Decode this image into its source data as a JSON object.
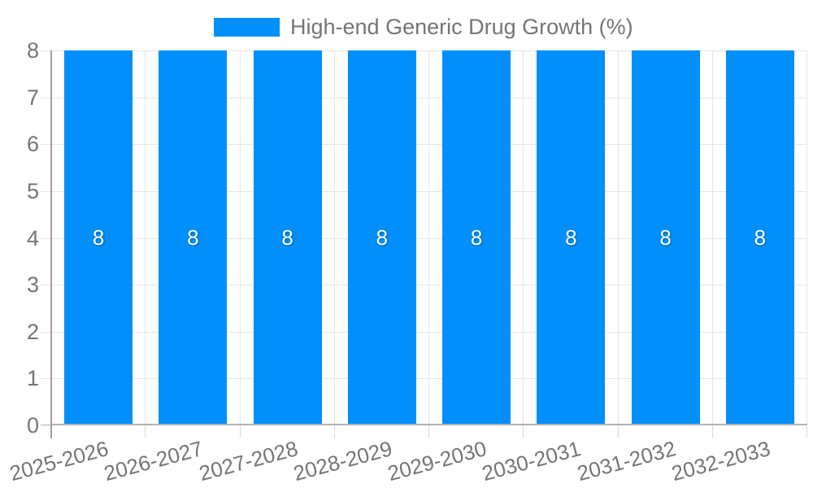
{
  "chart_data": {
    "type": "bar",
    "title": "",
    "legend": {
      "position": "top",
      "label": "High-end Generic Drug Growth (%)"
    },
    "categories": [
      "2025-2026",
      "2026-2027",
      "2027-2028",
      "2028-2029",
      "2029-2030",
      "2030-2031",
      "2031-2032",
      "2032-2033"
    ],
    "series": [
      {
        "name": "High-end Generic Drug Growth (%)",
        "values": [
          8,
          8,
          8,
          8,
          8,
          8,
          8,
          8
        ]
      }
    ],
    "value_labels": [
      "8",
      "8",
      "8",
      "8",
      "8",
      "8",
      "8",
      "8"
    ],
    "xlabel": "",
    "ylabel": "",
    "ylim": [
      0,
      8
    ],
    "yticks": [
      "0",
      "1",
      "2",
      "3",
      "4",
      "5",
      "6",
      "7",
      "8"
    ],
    "grid": true,
    "x_label_rotation_deg": -15
  },
  "colors": {
    "bar": "#008FFB",
    "axis_text": "#757575",
    "grid": "#e6e6e6",
    "baseline": "#b3b3b3",
    "axis_line": "#9e9e9e",
    "x_tick": "#d9d9d9",
    "value_label": "#ffffff",
    "background": "#ffffff"
  }
}
